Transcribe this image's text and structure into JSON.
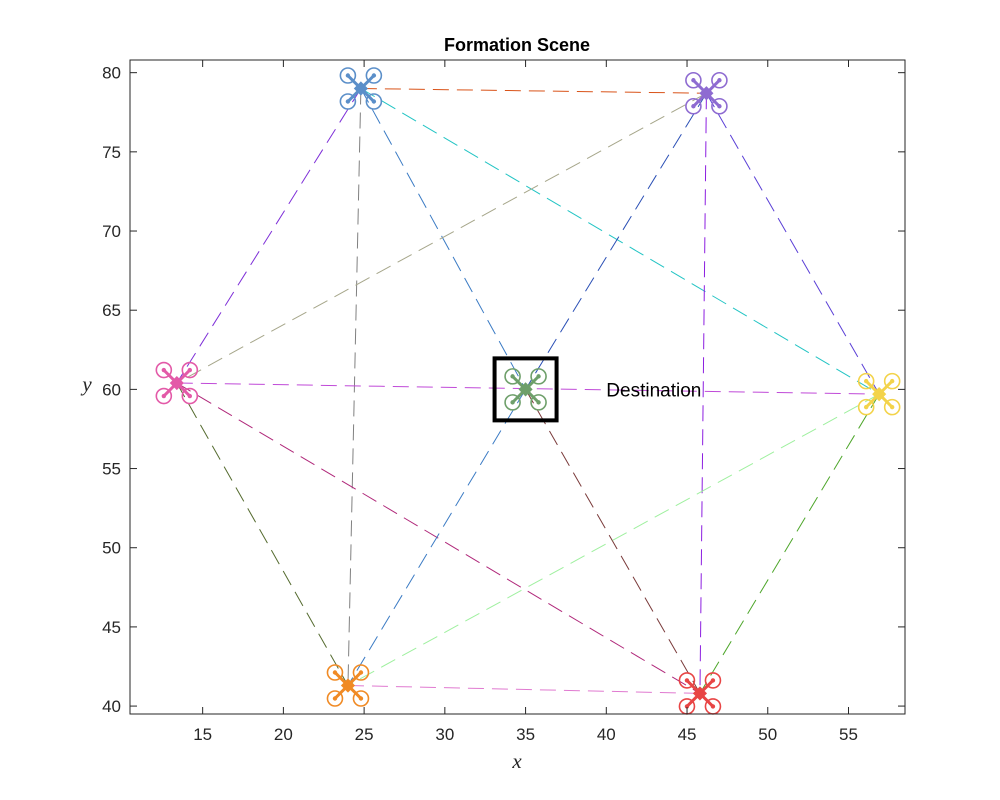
{
  "chart_data": {
    "type": "scatter",
    "title": "Formation Scene",
    "xlabel": "x",
    "ylabel": "y",
    "xlim": [
      10.5,
      58.5
    ],
    "ylim": [
      39.5,
      80.8
    ],
    "xticks": [
      15,
      20,
      25,
      30,
      35,
      40,
      45,
      50,
      55
    ],
    "yticks": [
      40,
      45,
      50,
      55,
      60,
      65,
      70,
      75,
      80
    ],
    "grid": false,
    "agents": [
      {
        "id": "pink",
        "x": 13.4,
        "y": 60.4,
        "color": "#e35aa8"
      },
      {
        "id": "blue",
        "x": 24.8,
        "y": 79.0,
        "color": "#5b8fc9"
      },
      {
        "id": "purple",
        "x": 46.2,
        "y": 78.7,
        "color": "#8e6bd1"
      },
      {
        "id": "yellow",
        "x": 56.9,
        "y": 59.7,
        "color": "#f3d34a"
      },
      {
        "id": "red",
        "x": 45.8,
        "y": 40.8,
        "color": "#e84545"
      },
      {
        "id": "orange",
        "x": 24.0,
        "y": 41.3,
        "color": "#f08a24"
      },
      {
        "id": "green",
        "x": 35.0,
        "y": 60.0,
        "color": "#6e9f6a"
      }
    ],
    "links": [
      {
        "from": "blue",
        "to": "purple",
        "color": "#d95319"
      },
      {
        "from": "blue",
        "to": "pink",
        "color": "#7e2fd8"
      },
      {
        "from": "blue",
        "to": "orange",
        "color": "#808080"
      },
      {
        "from": "blue",
        "to": "green",
        "color": "#3b7bc4"
      },
      {
        "from": "blue",
        "to": "yellow",
        "color": "#22c4c4"
      },
      {
        "from": "purple",
        "to": "pink",
        "color": "#a6a68a"
      },
      {
        "from": "purple",
        "to": "green",
        "color": "#2a4fb5"
      },
      {
        "from": "purple",
        "to": "red",
        "color": "#8c1ee0"
      },
      {
        "from": "purple",
        "to": "yellow",
        "color": "#5a3fd6"
      },
      {
        "from": "pink",
        "to": "yellow",
        "color": "#c04ad8"
      },
      {
        "from": "pink",
        "to": "orange",
        "color": "#556b2f"
      },
      {
        "from": "pink",
        "to": "red",
        "color": "#b0287a"
      },
      {
        "from": "green",
        "to": "orange",
        "color": "#3b7bc4"
      },
      {
        "from": "green",
        "to": "red",
        "color": "#7a3a3a"
      },
      {
        "from": "yellow",
        "to": "orange",
        "color": "#9ff09f"
      },
      {
        "from": "yellow",
        "to": "red",
        "color": "#4da62a"
      },
      {
        "from": "orange",
        "to": "red",
        "color": "#e07ad0"
      }
    ],
    "destination": {
      "x": 35.0,
      "y": 60.0,
      "label": "Destination",
      "label_x": 40.0,
      "label_y": 60.0
    }
  }
}
